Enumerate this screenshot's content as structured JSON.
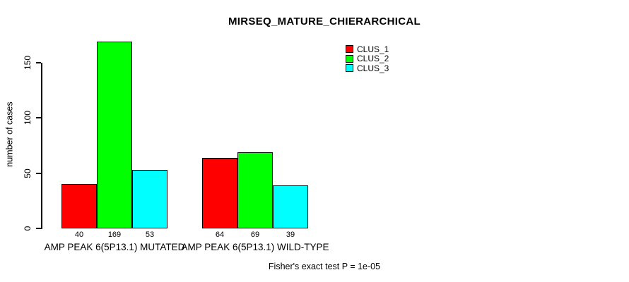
{
  "title": "MIRSEQ_MATURE_CHIERARCHICAL",
  "chart_data": {
    "type": "bar",
    "title": "MIRSEQ_MATURE_CHIERARCHICAL",
    "xlabel": "",
    "ylabel": "number of cases",
    "ylim": [
      0,
      169
    ],
    "yticks": [
      0,
      50,
      100,
      150
    ],
    "grid": false,
    "legend_position": "top-right",
    "categories": [
      "AMP PEAK  6(5P13.1) MUTATED",
      "AMP PEAK  6(5P13.1) WILD-TYPE"
    ],
    "series": [
      {
        "name": "CLUS_1",
        "color": "#FF0000",
        "values": [
          40,
          64
        ]
      },
      {
        "name": "CLUS_2",
        "color": "#00FF00",
        "values": [
          169,
          69
        ]
      },
      {
        "name": "CLUS_3",
        "color": "#00FFFF",
        "values": [
          53,
          39
        ]
      }
    ],
    "bar_value_labels": [
      [
        40,
        169,
        53
      ],
      [
        64,
        69,
        39
      ]
    ],
    "annotation": "Fisher's exact test P = 1e-05"
  },
  "colors": {
    "background": "#FFFFFF",
    "bar_border": "#000000",
    "axis": "#000000",
    "text": "#000000"
  }
}
